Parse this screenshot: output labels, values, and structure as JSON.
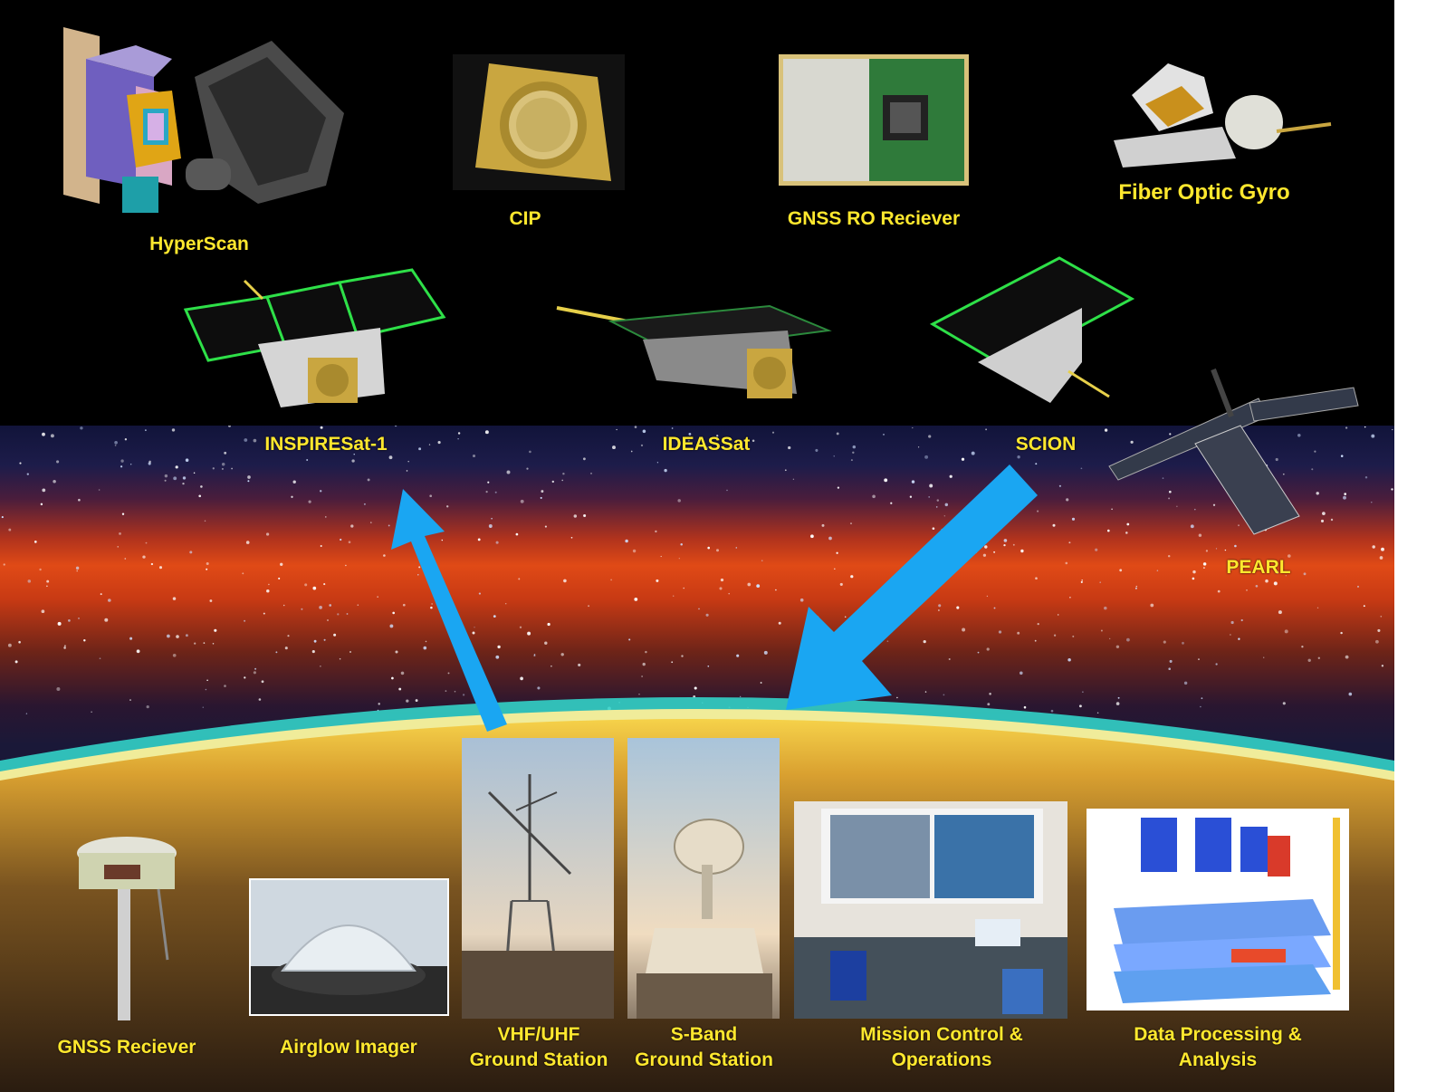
{
  "instruments": {
    "hyperscan": "HyperScan",
    "cip": "CIP",
    "gnss_ro": "GNSS RO Reciever",
    "fiber_optic_gyro": "Fiber Optic Gyro"
  },
  "satellites": {
    "inspiresat": "INSPIRESat-1",
    "ideassat": "IDEASSat",
    "scion": "SCION",
    "pearl": "PEARL"
  },
  "ground": {
    "gnss_receiver": "GNSS Reciever",
    "airglow_imager": "Airglow Imager",
    "vhf_uhf_line1": "VHF/UHF",
    "vhf_uhf_line2": "Ground Station",
    "sband_line1": "S-Band",
    "sband_line2": "Ground Station",
    "mission_line1": "Mission Control &",
    "mission_line2": "Operations",
    "data_line1": "Data Processing &",
    "data_line2": "Analysis"
  },
  "colors": {
    "label": "#ffe82e",
    "arrow": "#1aa6f2",
    "panel": "#15a83c",
    "gold": "#c9a640"
  }
}
